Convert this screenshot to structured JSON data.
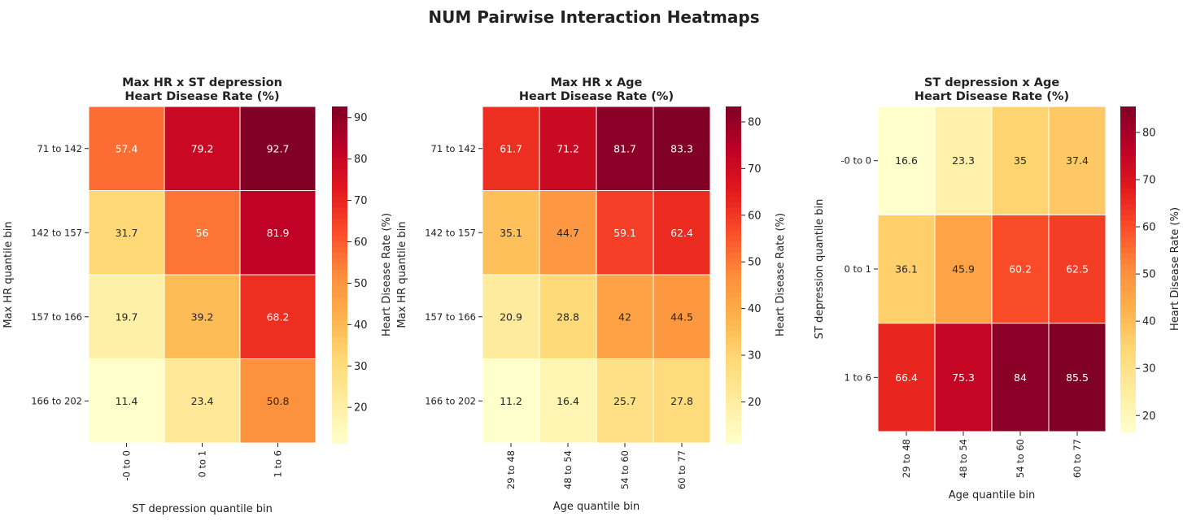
{
  "suptitle": "NUM Pairwise Interaction Heatmaps",
  "colormap": [
    "#ffffcc",
    "#ffeda0",
    "#fed976",
    "#feb24c",
    "#fd8d3c",
    "#fc4e2a",
    "#e31a1c",
    "#bd0026",
    "#800026"
  ],
  "chart_data": [
    {
      "type": "heatmap",
      "title": [
        "Max HR x ST depression",
        "Heart Disease Rate (%)"
      ],
      "xlabel": "ST depression quantile bin",
      "ylabel": "Max HR quantile bin",
      "x_categories": [
        "-0 to 0",
        "0 to 1",
        "1 to 6"
      ],
      "y_categories": [
        "71 to 142",
        "142 to 157",
        "157 to 166",
        "166 to 202"
      ],
      "values": [
        [
          57.4,
          79.2,
          92.7
        ],
        [
          31.7,
          56.0,
          81.9
        ],
        [
          19.7,
          39.2,
          68.2
        ],
        [
          11.4,
          23.4,
          50.8
        ]
      ],
      "colorbar": {
        "label": "Heart Disease Rate (%)",
        "range": [
          11.4,
          92.7
        ],
        "ticks": [
          20,
          30,
          40,
          50,
          60,
          70,
          80,
          90
        ]
      }
    },
    {
      "type": "heatmap",
      "title": [
        "Max HR x Age",
        "Heart Disease Rate (%)"
      ],
      "xlabel": "Age quantile bin",
      "ylabel": "Max HR quantile bin",
      "x_categories": [
        "29 to 48",
        "48 to 54",
        "54 to 60",
        "60 to 77"
      ],
      "y_categories": [
        "71 to 142",
        "142 to 157",
        "157 to 166",
        "166 to 202"
      ],
      "values": [
        [
          61.7,
          71.2,
          81.7,
          83.3
        ],
        [
          35.1,
          44.7,
          59.1,
          62.4
        ],
        [
          20.9,
          28.8,
          42.0,
          44.5
        ],
        [
          11.2,
          16.4,
          25.7,
          27.8
        ]
      ],
      "colorbar": {
        "label": "Heart Disease Rate (%)",
        "range": [
          11.2,
          83.3
        ],
        "ticks": [
          20,
          30,
          40,
          50,
          60,
          70,
          80
        ]
      }
    },
    {
      "type": "heatmap",
      "title": [
        "ST depression x Age",
        "Heart Disease Rate (%)"
      ],
      "xlabel": "Age quantile bin",
      "ylabel": "ST depression quantile bin",
      "x_categories": [
        "29 to 48",
        "48 to 54",
        "54 to 60",
        "60 to 77"
      ],
      "y_categories": [
        "-0 to 0",
        "0 to 1",
        "1 to 6"
      ],
      "values": [
        [
          16.6,
          23.3,
          35.0,
          37.4
        ],
        [
          36.1,
          45.9,
          60.2,
          62.5
        ],
        [
          66.4,
          75.3,
          84.0,
          85.5
        ]
      ],
      "colorbar": {
        "label": "Heart Disease Rate (%)",
        "range": [
          16.6,
          85.5
        ],
        "ticks": [
          20,
          30,
          40,
          50,
          60,
          70,
          80
        ]
      }
    }
  ]
}
